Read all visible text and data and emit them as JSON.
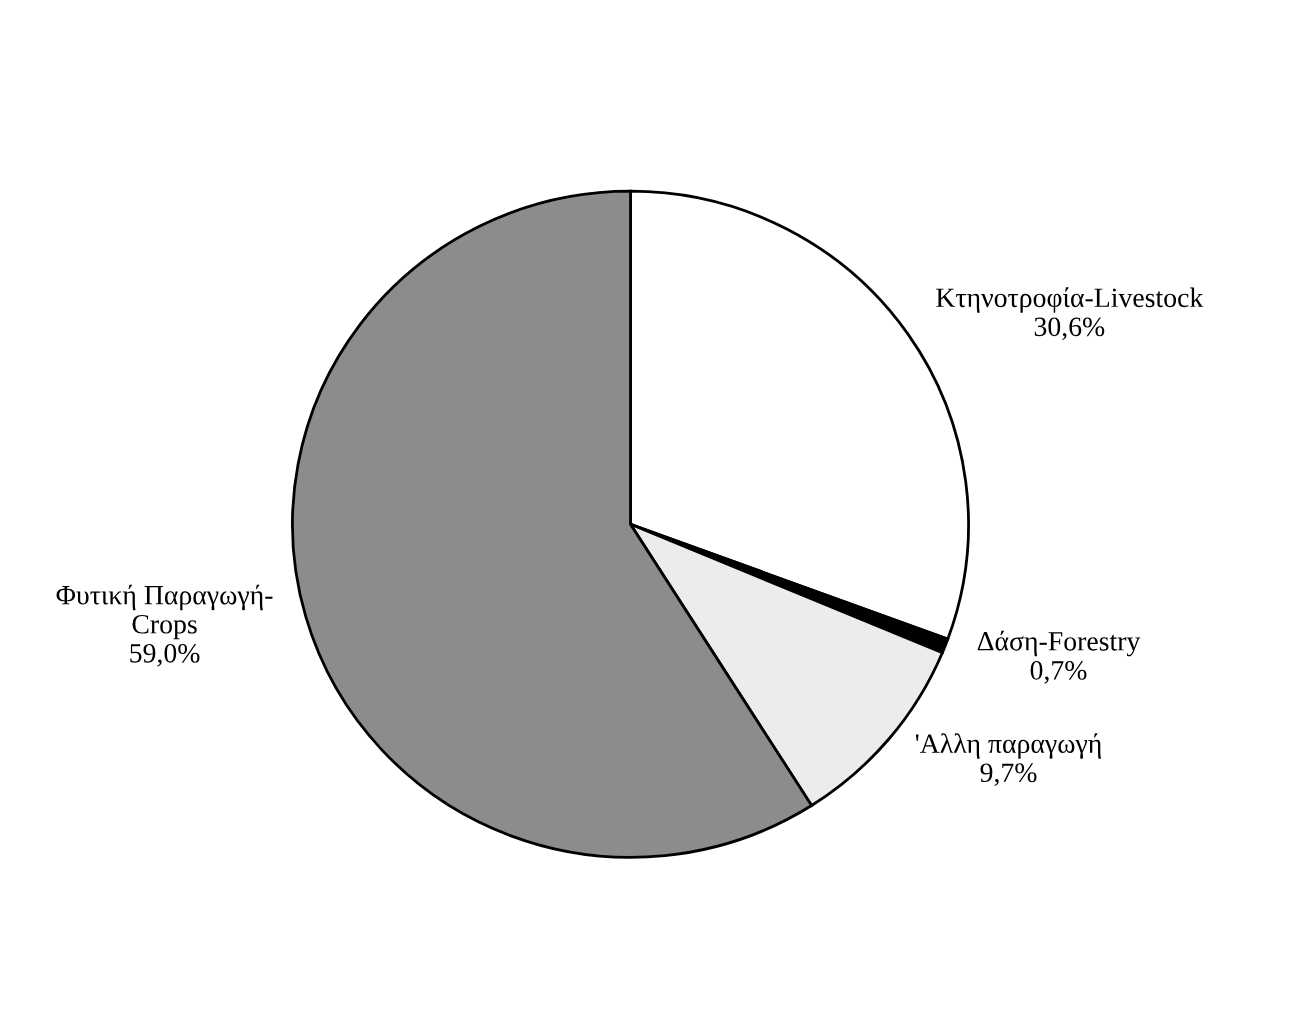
{
  "chart_data": {
    "type": "pie",
    "categories": [
      "Κτηνοτροφία-Livestock",
      "Δάση-Forestry",
      "'Αλλη παραγωγή",
      "Φυτική Παραγωγή-\nCrops"
    ],
    "values": [
      30.6,
      0.7,
      9.7,
      59.0
    ],
    "value_labels": [
      "30,6%",
      "0,7%",
      "9,7%",
      "59,0%"
    ],
    "colors": [
      "#ffffff",
      "#000000",
      "#ececec",
      "#8c8c8c"
    ]
  }
}
